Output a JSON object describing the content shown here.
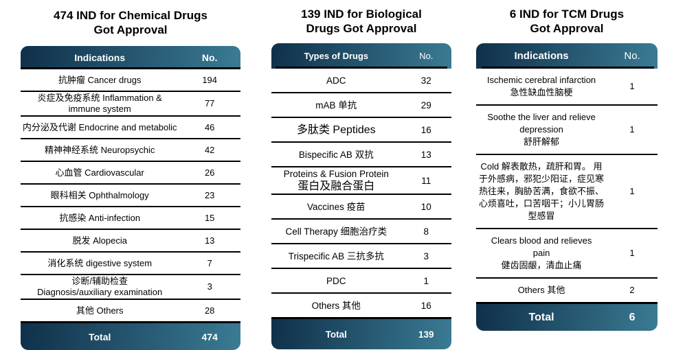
{
  "colors": {
    "background": "#ffffff",
    "header_gradient_start": "#10304a",
    "header_gradient_end": "#3a7b93",
    "header_text": "#ffffff",
    "body_text": "#000000",
    "divider": "#000000"
  },
  "tables": [
    {
      "title_lines": [
        "474 IND for Chemical Drugs",
        "Got Approval"
      ],
      "columns": {
        "label": "Indications",
        "value": "No."
      },
      "rows": [
        {
          "lines": [
            {
              "t": "抗肿瘤 Cancer drugs"
            }
          ],
          "value": "194"
        },
        {
          "lines": [
            {
              "t": "炎症及免疫系统 Inflammation &"
            },
            {
              "t": "immune system"
            }
          ],
          "value": "77"
        },
        {
          "lines": [
            {
              "t": "内分泌及代谢 Endocrine and metabolic"
            }
          ],
          "value": "46"
        },
        {
          "lines": [
            {
              "t": "精神神经系统 Neuropsychic"
            }
          ],
          "value": "42"
        },
        {
          "lines": [
            {
              "t": "心血管 Cardiovascular"
            }
          ],
          "value": "26"
        },
        {
          "lines": [
            {
              "t": "眼科相关 Ophthalmology"
            }
          ],
          "value": "23"
        },
        {
          "lines": [
            {
              "t": "抗感染 Anti-infection"
            }
          ],
          "value": "15"
        },
        {
          "lines": [
            {
              "t": "脱发 Alopecia"
            }
          ],
          "value": "13"
        },
        {
          "lines": [
            {
              "t": "消化系统 digestive system"
            }
          ],
          "value": "7"
        },
        {
          "lines": [
            {
              "t": "诊断/辅助检查"
            },
            {
              "t": "Diagnosis/auxiliary examination"
            }
          ],
          "value": "3"
        },
        {
          "lines": [
            {
              "t": "其他 Others"
            }
          ],
          "value": "28"
        }
      ],
      "total": {
        "label": "Total",
        "value": "474"
      }
    },
    {
      "title_lines": [
        "139 IND for Biological",
        "Drugs Got Approval"
      ],
      "columns": {
        "label": "Types of Drugs",
        "value": "No."
      },
      "rows": [
        {
          "lines": [
            {
              "t": "ADC"
            }
          ],
          "value": "32"
        },
        {
          "lines": [
            {
              "t": "mAB 单抗"
            }
          ],
          "value": "29"
        },
        {
          "lines": [
            {
              "t": "多肽类 Peptides",
              "lg": true
            }
          ],
          "value": "16"
        },
        {
          "lines": [
            {
              "t": "Bispecific AB 双抗"
            }
          ],
          "value": "13"
        },
        {
          "lines": [
            {
              "t": "Proteins & Fusion Protein"
            },
            {
              "t": "蛋白及融合蛋白",
              "lg": true
            }
          ],
          "value": "11"
        },
        {
          "lines": [
            {
              "t": "Vaccines 疫苗"
            }
          ],
          "value": "10"
        },
        {
          "lines": [
            {
              "t": "Cell Therapy 细胞治疗类"
            }
          ],
          "value": "8"
        },
        {
          "lines": [
            {
              "t": "Trispecific AB 三抗多抗"
            }
          ],
          "value": "3"
        },
        {
          "lines": [
            {
              "t": "PDC"
            }
          ],
          "value": "1"
        },
        {
          "lines": [
            {
              "t": "Others 其他"
            }
          ],
          "value": "16"
        }
      ],
      "total": {
        "label": "Total",
        "value": "139"
      }
    },
    {
      "title_lines": [
        "6 IND for TCM Drugs",
        "Got Approval"
      ],
      "columns": {
        "label": "Indications",
        "value": "No."
      },
      "rows": [
        {
          "lines": [
            {
              "t": "Ischemic cerebral infarction"
            },
            {
              "t": "急性缺血性脑梗"
            }
          ],
          "value": "1"
        },
        {
          "lines": [
            {
              "t": "Soothe the liver and relieve"
            },
            {
              "t": "depression"
            },
            {
              "t": "舒肝解郁"
            }
          ],
          "value": "1"
        },
        {
          "lines": [
            {
              "t": "Cold 解表散热，疏肝和胃。 用"
            },
            {
              "t": "于外感病，邪犯少阳证，症见寒"
            },
            {
              "t": "热往来，胸胁苦满，食欲不振、"
            },
            {
              "t": "心烦喜吐，口苦咽干；小儿胃肠"
            },
            {
              "t": "型感冒"
            }
          ],
          "value": "1"
        },
        {
          "lines": [
            {
              "t": "Clears blood and relieves"
            },
            {
              "t": "pain"
            },
            {
              "t": "健齿固龈，清血止痛"
            }
          ],
          "value": "1"
        },
        {
          "lines": [
            {
              "t": "Others 其他"
            }
          ],
          "value": "2"
        }
      ],
      "total": {
        "label": "Total",
        "value": "6"
      }
    }
  ],
  "chart_data": [
    {
      "type": "table",
      "title": "474 IND for Chemical Drugs Got Approval",
      "columns": [
        "Indications",
        "No."
      ],
      "rows": [
        [
          "抗肿瘤 Cancer drugs",
          194
        ],
        [
          "炎症及免疫系统 Inflammation & immune system",
          77
        ],
        [
          "内分泌及代谢 Endocrine and metabolic",
          46
        ],
        [
          "精神神经系统 Neuropsychic",
          42
        ],
        [
          "心血管 Cardiovascular",
          26
        ],
        [
          "眼科相关 Ophthalmology",
          23
        ],
        [
          "抗感染 Anti-infection",
          15
        ],
        [
          "脱发 Alopecia",
          13
        ],
        [
          "消化系统 digestive system",
          7
        ],
        [
          "诊断/辅助检查 Diagnosis/auxiliary examination",
          3
        ],
        [
          "其他 Others",
          28
        ]
      ],
      "total": [
        "Total",
        474
      ]
    },
    {
      "type": "table",
      "title": "139 IND for Biological Drugs Got Approval",
      "columns": [
        "Types of Drugs",
        "No."
      ],
      "rows": [
        [
          "ADC",
          32
        ],
        [
          "mAB 单抗",
          29
        ],
        [
          "多肽类 Peptides",
          16
        ],
        [
          "Bispecific AB 双抗",
          13
        ],
        [
          "Proteins & Fusion Protein 蛋白及融合蛋白",
          11
        ],
        [
          "Vaccines 疫苗",
          10
        ],
        [
          "Cell Therapy 细胞治疗类",
          8
        ],
        [
          "Trispecific AB 三抗多抗",
          3
        ],
        [
          "PDC",
          1
        ],
        [
          "Others 其他",
          16
        ]
      ],
      "total": [
        "Total",
        139
      ]
    },
    {
      "type": "table",
      "title": "6 IND for TCM Drugs Got Approval",
      "columns": [
        "Indications",
        "No."
      ],
      "rows": [
        [
          "Ischemic cerebral infarction 急性缺血性脑梗",
          1
        ],
        [
          "Soothe the liver and relieve depression 舒肝解郁",
          1
        ],
        [
          "Cold 解表散热，疏肝和胃。用于外感病，邪犯少阳证，症见寒热往来，胸胁苦满，食欲不振、心烦喜吐，口苦咽干；小儿胃肠型感冒",
          1
        ],
        [
          "Clears blood and relieves pain 健齿固龈，清血止痛",
          1
        ],
        [
          "Others 其他",
          2
        ]
      ],
      "total": [
        "Total",
        6
      ]
    }
  ]
}
